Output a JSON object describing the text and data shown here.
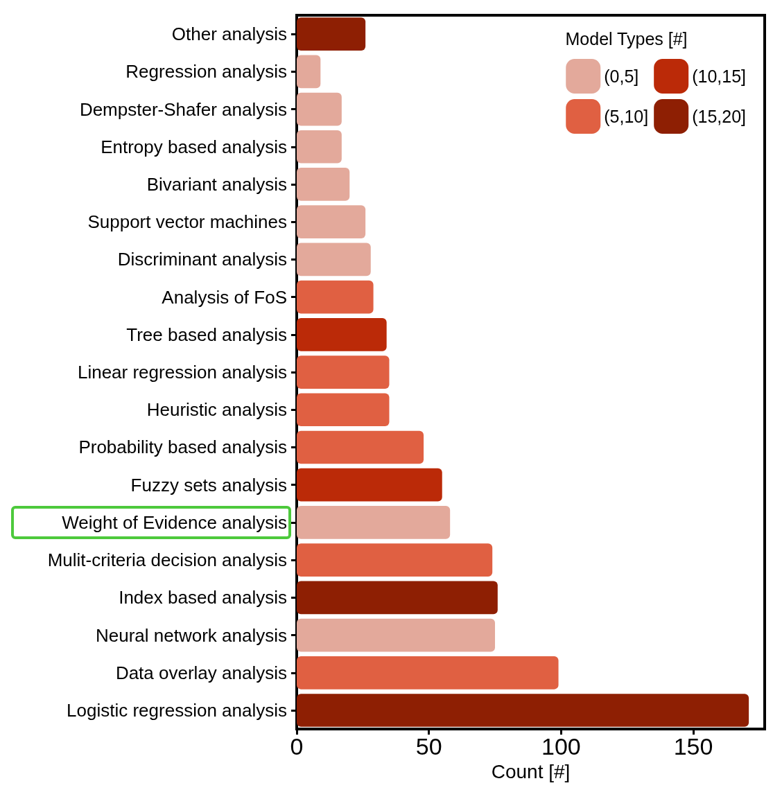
{
  "chart_data": {
    "type": "bar",
    "orientation": "horizontal",
    "xlabel": "Count [#]",
    "legend_title": "Model Types [#]",
    "legend": "top right",
    "grid": false,
    "categories": [
      "Other analysis",
      "Regression analysis",
      "Dempster-Shafer analysis",
      "Entropy based analysis",
      "Bivariant analysis",
      "Support vector machines",
      "Discriminant analysis",
      "Analysis of FoS",
      "Tree based analysis",
      "Linear regression analysis",
      "Heuristic analysis",
      "Probability based analysis",
      "Fuzzy sets analysis",
      "Weight of Evidence analysis",
      "Mulit-criteria decision analysis",
      "Index based analysis",
      "Neural network analysis",
      "Data overlay analysis",
      "Logistic regression analysis"
    ],
    "series": [
      {
        "name": "(0,5]",
        "color": "#e3a99b",
        "values": [
          null,
          9,
          17,
          17,
          20,
          26,
          28,
          null,
          null,
          null,
          null,
          null,
          null,
          58,
          null,
          null,
          75,
          null,
          null
        ]
      },
      {
        "name": "(5,10]",
        "color": "#e06042",
        "values": [
          null,
          null,
          null,
          null,
          null,
          null,
          null,
          29,
          null,
          35,
          35,
          48,
          null,
          null,
          74,
          null,
          null,
          99,
          null
        ]
      },
      {
        "name": "(10,15]",
        "color": "#bb2a08",
        "values": [
          null,
          null,
          null,
          null,
          null,
          null,
          null,
          null,
          34,
          null,
          null,
          null,
          55,
          null,
          null,
          null,
          null,
          null,
          null
        ]
      },
      {
        "name": "(15,20]",
        "color": "#8e1f03",
        "values": [
          26,
          null,
          null,
          null,
          null,
          null,
          null,
          null,
          null,
          null,
          null,
          null,
          null,
          null,
          null,
          76,
          null,
          null,
          171
        ]
      }
    ],
    "xlim": [
      0,
      177
    ],
    "xticks": [
      0,
      50,
      100,
      150
    ]
  }
}
